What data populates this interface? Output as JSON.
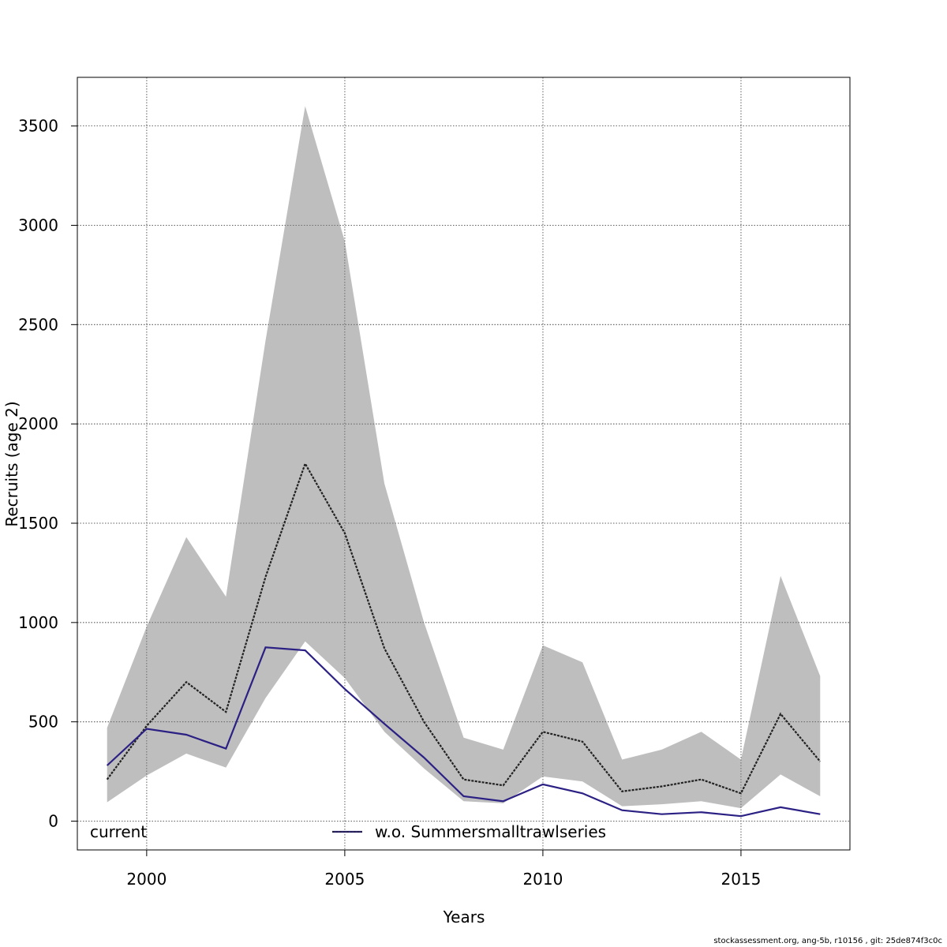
{
  "chart_data": {
    "type": "line",
    "title": "",
    "xlabel": "Years",
    "ylabel": "Recruits (age 2)",
    "xlim": [
      1998.25,
      2017.75
    ],
    "ylim": [
      -145,
      3745
    ],
    "xticks": [
      2000,
      2005,
      2010,
      2015
    ],
    "yticks": [
      0,
      500,
      1000,
      1500,
      2000,
      2500,
      3000,
      3500
    ],
    "grid": true,
    "x": [
      1999,
      2000,
      2001,
      2002,
      2003,
      2004,
      2005,
      2006,
      2007,
      2008,
      2009,
      2010,
      2011,
      2012,
      2013,
      2014,
      2015,
      2016,
      2017
    ],
    "band": {
      "upper": [
        470,
        980,
        1430,
        1130,
        2420,
        3600,
        2920,
        1700,
        1000,
        420,
        360,
        885,
        800,
        310,
        360,
        450,
        310,
        1235,
        730
      ],
      "lower": [
        95,
        230,
        340,
        270,
        620,
        905,
        720,
        450,
        265,
        100,
        90,
        225,
        200,
        75,
        85,
        100,
        65,
        235,
        125
      ]
    },
    "series": [
      {
        "name": "current",
        "style": "dashed-black",
        "values": [
          210,
          480,
          700,
          550,
          1230,
          1800,
          1450,
          870,
          500,
          210,
          180,
          450,
          400,
          150,
          175,
          210,
          140,
          540,
          300
        ]
      },
      {
        "name": "w.o. Summersmalltrawlseries",
        "style": "solid-navy",
        "values": [
          280,
          465,
          435,
          365,
          875,
          860,
          665,
          490,
          320,
          125,
          100,
          185,
          140,
          55,
          35,
          45,
          25,
          70,
          35
        ]
      }
    ],
    "legend": {
      "placement": "bottom-inside",
      "items": [
        "current",
        "w.o. Summersmalltrawlseries"
      ]
    },
    "colors": {
      "band": "#bebebe",
      "current": "#222222",
      "alt": "#2b2083",
      "grid": "#555555"
    }
  },
  "footer_text": "stockassessment.org, ang-5b, r10156 , git: 25de874f3c0c"
}
